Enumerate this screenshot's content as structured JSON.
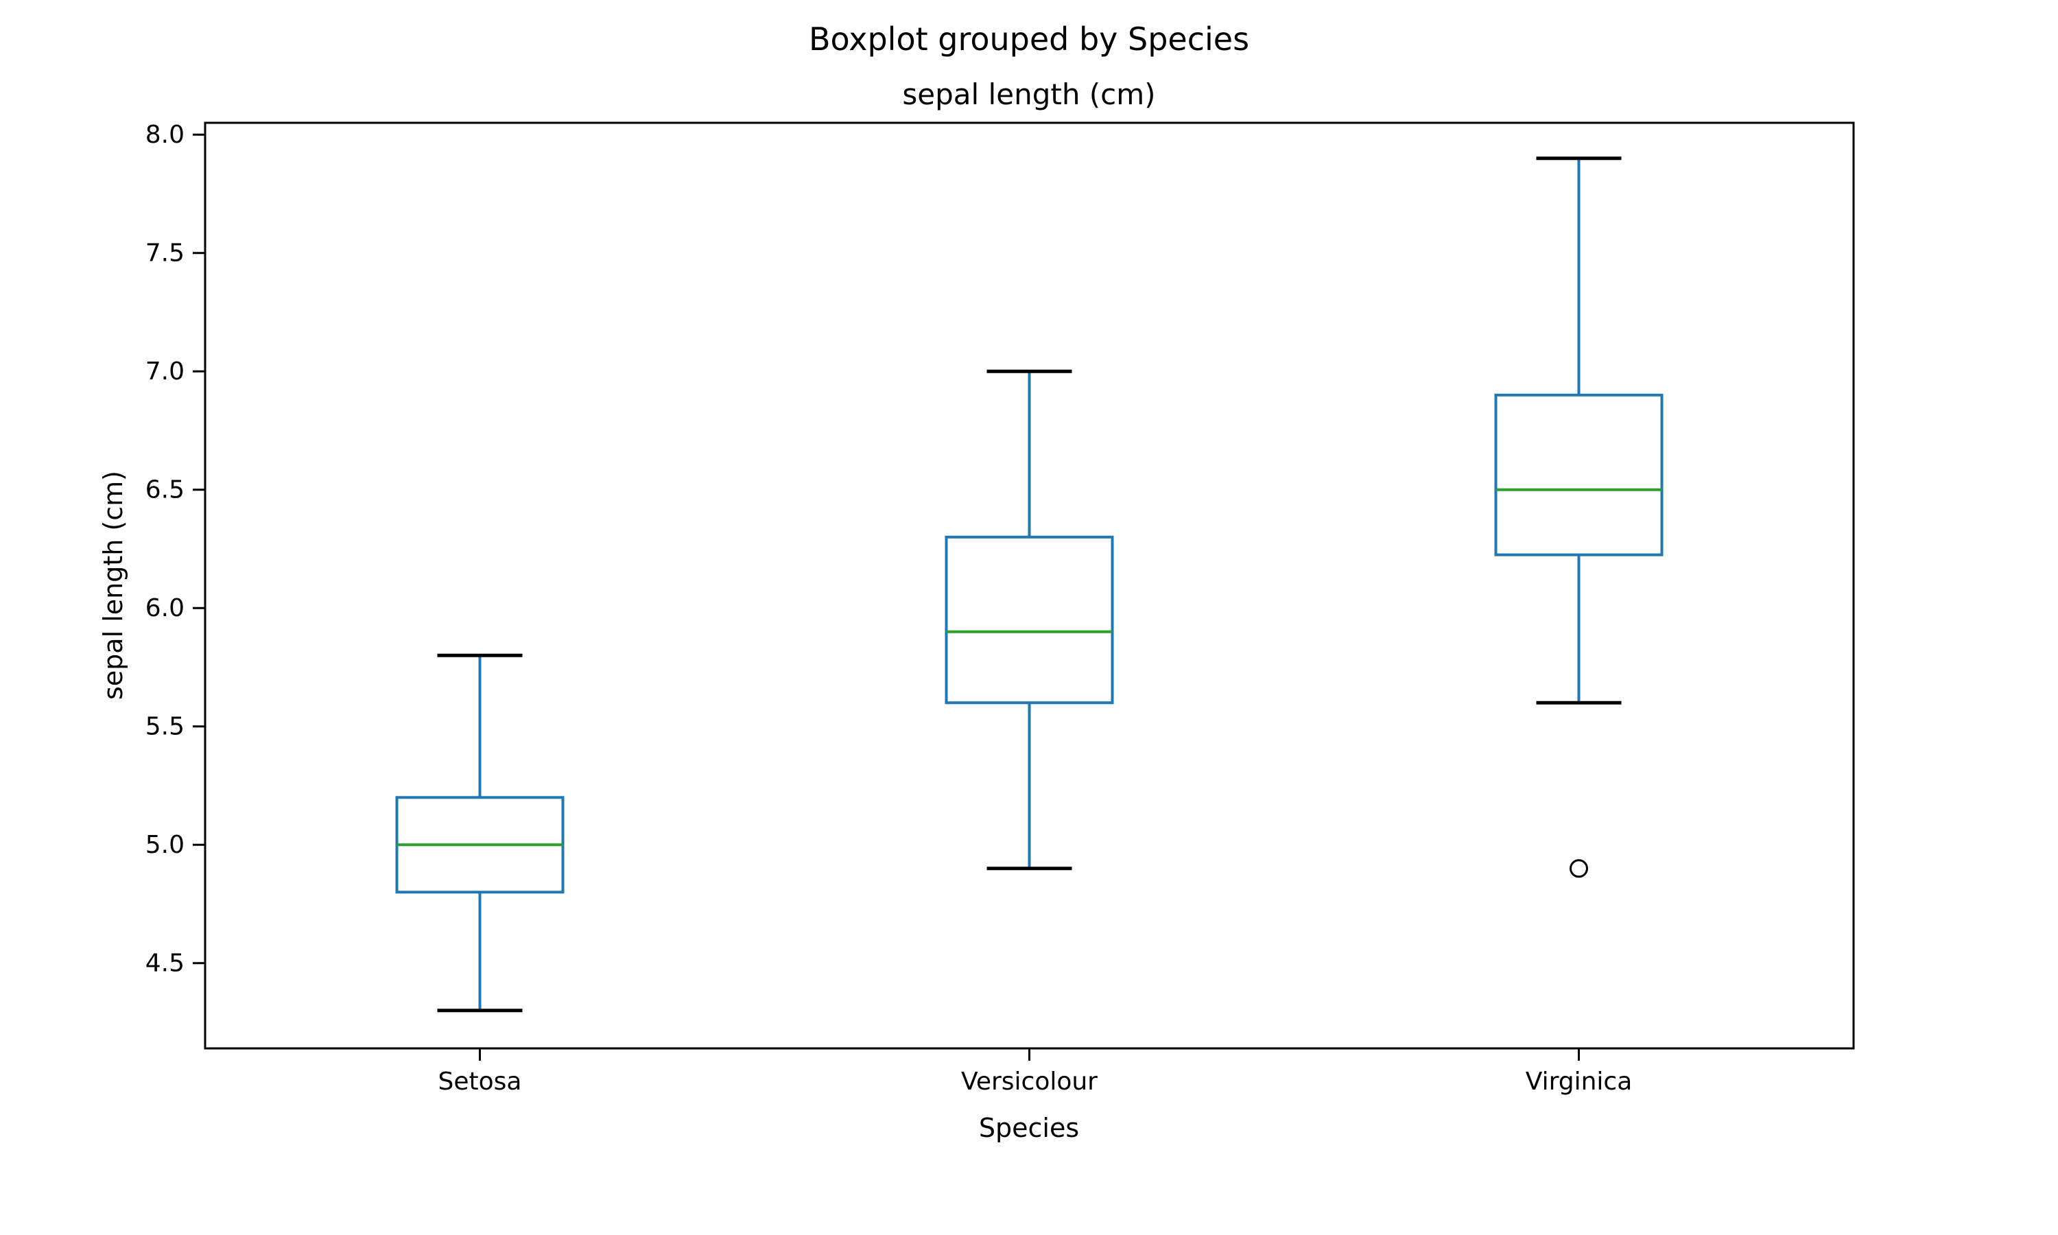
{
  "figure": {
    "title": "Boxplot grouped by Species",
    "subtitle": "sepal length (cm)"
  },
  "chart_data": {
    "type": "boxplot",
    "title": "Boxplot grouped by Species",
    "subtitle": "sepal length (cm)",
    "xlabel": "Species",
    "ylabel": "sepal length (cm)",
    "categories": [
      "Setosa",
      "Versicolour",
      "Virginica"
    ],
    "series": [
      {
        "name": "Setosa",
        "whisker_low": 4.3,
        "q1": 4.8,
        "median": 5.0,
        "q3": 5.2,
        "whisker_high": 5.8,
        "fliers": []
      },
      {
        "name": "Versicolour",
        "whisker_low": 4.9,
        "q1": 5.6,
        "median": 5.9,
        "q3": 6.3,
        "whisker_high": 7.0,
        "fliers": []
      },
      {
        "name": "Virginica",
        "whisker_low": 5.6,
        "q1": 6.225,
        "median": 6.5,
        "q3": 6.9,
        "whisker_high": 7.9,
        "fliers": [
          4.9
        ]
      }
    ],
    "yticks": [
      4.5,
      5.0,
      5.5,
      6.0,
      6.5,
      7.0,
      7.5,
      8.0
    ],
    "ytick_labels": [
      "4.5",
      "5.0",
      "5.5",
      "6.0",
      "6.5",
      "7.0",
      "7.5",
      "8.0"
    ],
    "ylim": [
      4.14,
      8.05
    ],
    "grid": false,
    "legend": null,
    "colors": {
      "box": "#1f77b4",
      "whisker": "#1f77b4",
      "median": "#2ca02c",
      "cap": "#000000",
      "flier_edge": "#000000",
      "spine": "#000000",
      "text": "#000000",
      "background": "#ffffff"
    }
  }
}
